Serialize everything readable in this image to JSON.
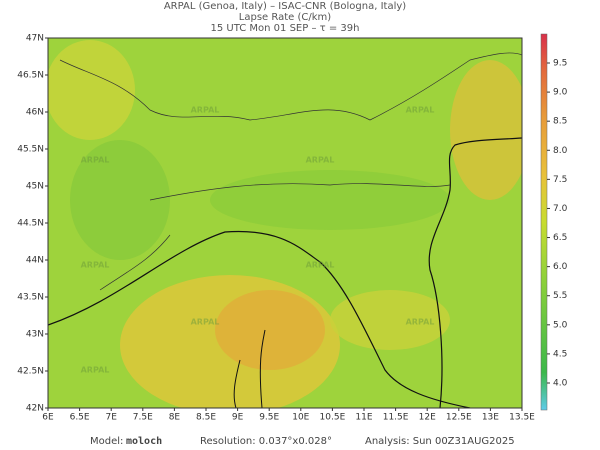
{
  "header": {
    "line1": "ARPAL (Genoa, Italy)  –  ISAC-CNR (Bologna, Italy)",
    "line2": "Lapse Rate (C/km)",
    "line3": "15 UTC Mon 01 SEP  –  τ = 39h"
  },
  "map": {
    "lat_ticks": [
      "47N",
      "46.5N",
      "46N",
      "45.5N",
      "45N",
      "44.5N",
      "44N",
      "43.5N",
      "43N",
      "42.5N",
      "42N"
    ],
    "lon_ticks": [
      "6E",
      "6.5E",
      "7E",
      "7.5E",
      "8E",
      "8.5E",
      "9E",
      "9.5E",
      "10E",
      "10.5E",
      "11E",
      "11.5E",
      "12E",
      "12.5E",
      "13E",
      "13.5E"
    ],
    "watermark": "ARPAL"
  },
  "colorbar": {
    "ticks": [
      "9.5",
      "9.0",
      "8.5",
      "8.0",
      "7.5",
      "7.0",
      "6.5",
      "6.0",
      "5.5",
      "5.0",
      "4.5",
      "4.0"
    ]
  },
  "footer": {
    "model_label": "Model:",
    "model": "moloch",
    "resolution": "Resolution: 0.037°x0.028°",
    "analysis": "Analysis: Sun 00Z31AUG2025"
  }
}
